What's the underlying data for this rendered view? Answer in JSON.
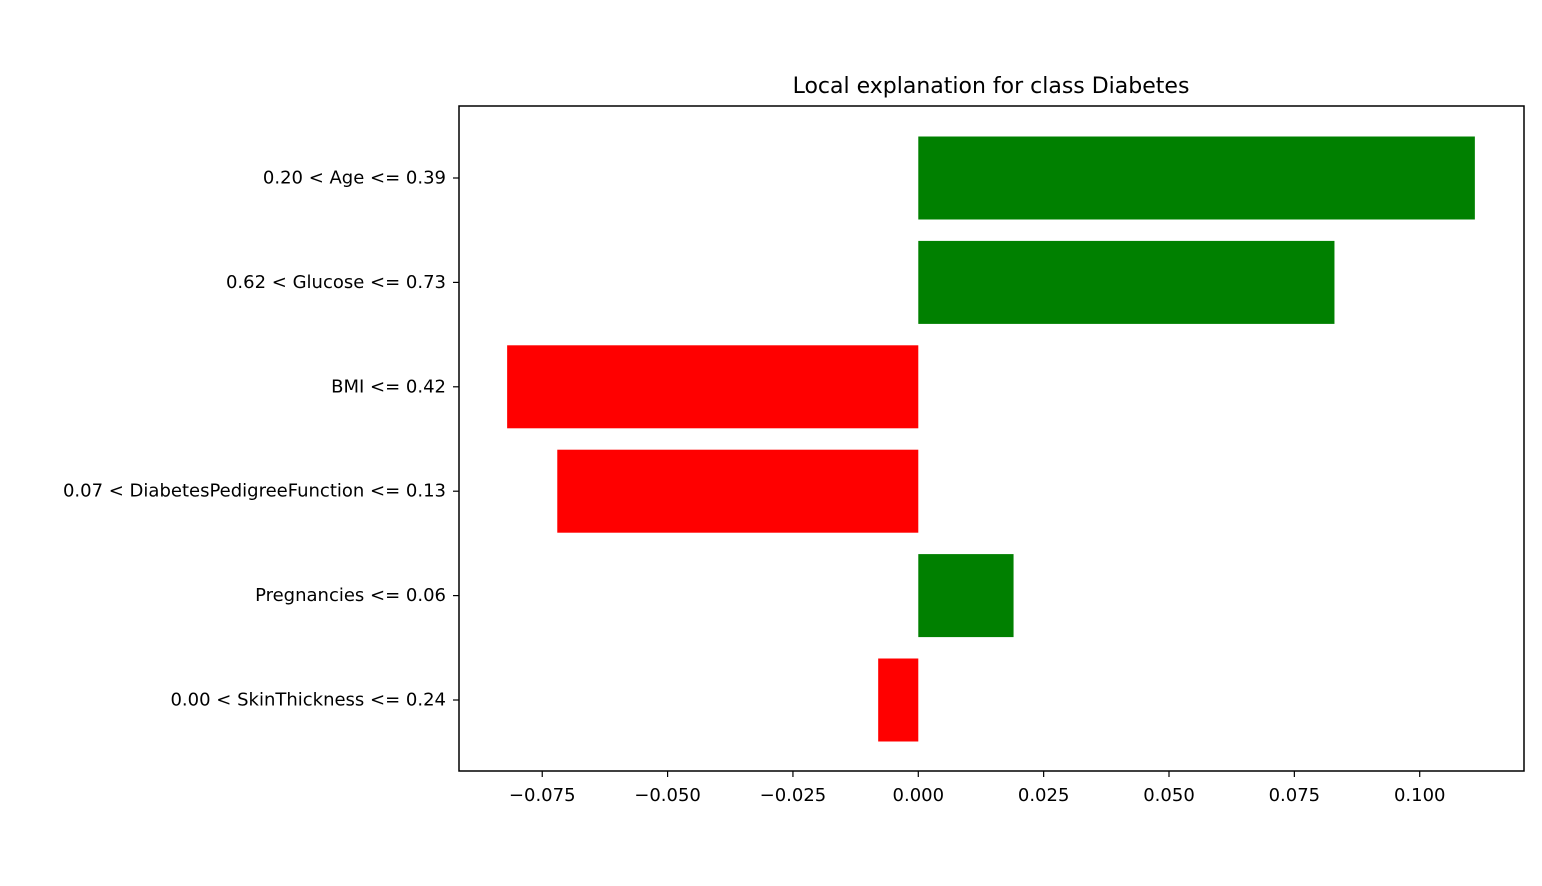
{
  "chart_data": {
    "type": "bar",
    "orientation": "horizontal",
    "title": "Local explanation for class Diabetes",
    "xlabel": "",
    "ylabel": "",
    "categories": [
      "0.20 < Age <= 0.39",
      "0.62 < Glucose <= 0.73",
      "BMI <= 0.42",
      "0.07 < DiabetesPedigreeFunction <= 0.13",
      "Pregnancies <= 0.06",
      "0.00 < SkinThickness <= 0.24"
    ],
    "values": [
      0.111,
      0.083,
      -0.082,
      -0.072,
      0.019,
      -0.008
    ],
    "xlim": [
      -0.0916,
      0.1208
    ],
    "xticks": [
      -0.075,
      -0.05,
      -0.025,
      0.0,
      0.025,
      0.05,
      0.075,
      0.1
    ],
    "xtick_labels": [
      "−0.075",
      "−0.050",
      "−0.025",
      "0.000",
      "0.025",
      "0.050",
      "0.075",
      "0.100"
    ],
    "colors": {
      "positive": "#008000",
      "negative": "#ff0000",
      "axes": "#000000"
    },
    "grid": false,
    "legend": "none"
  }
}
